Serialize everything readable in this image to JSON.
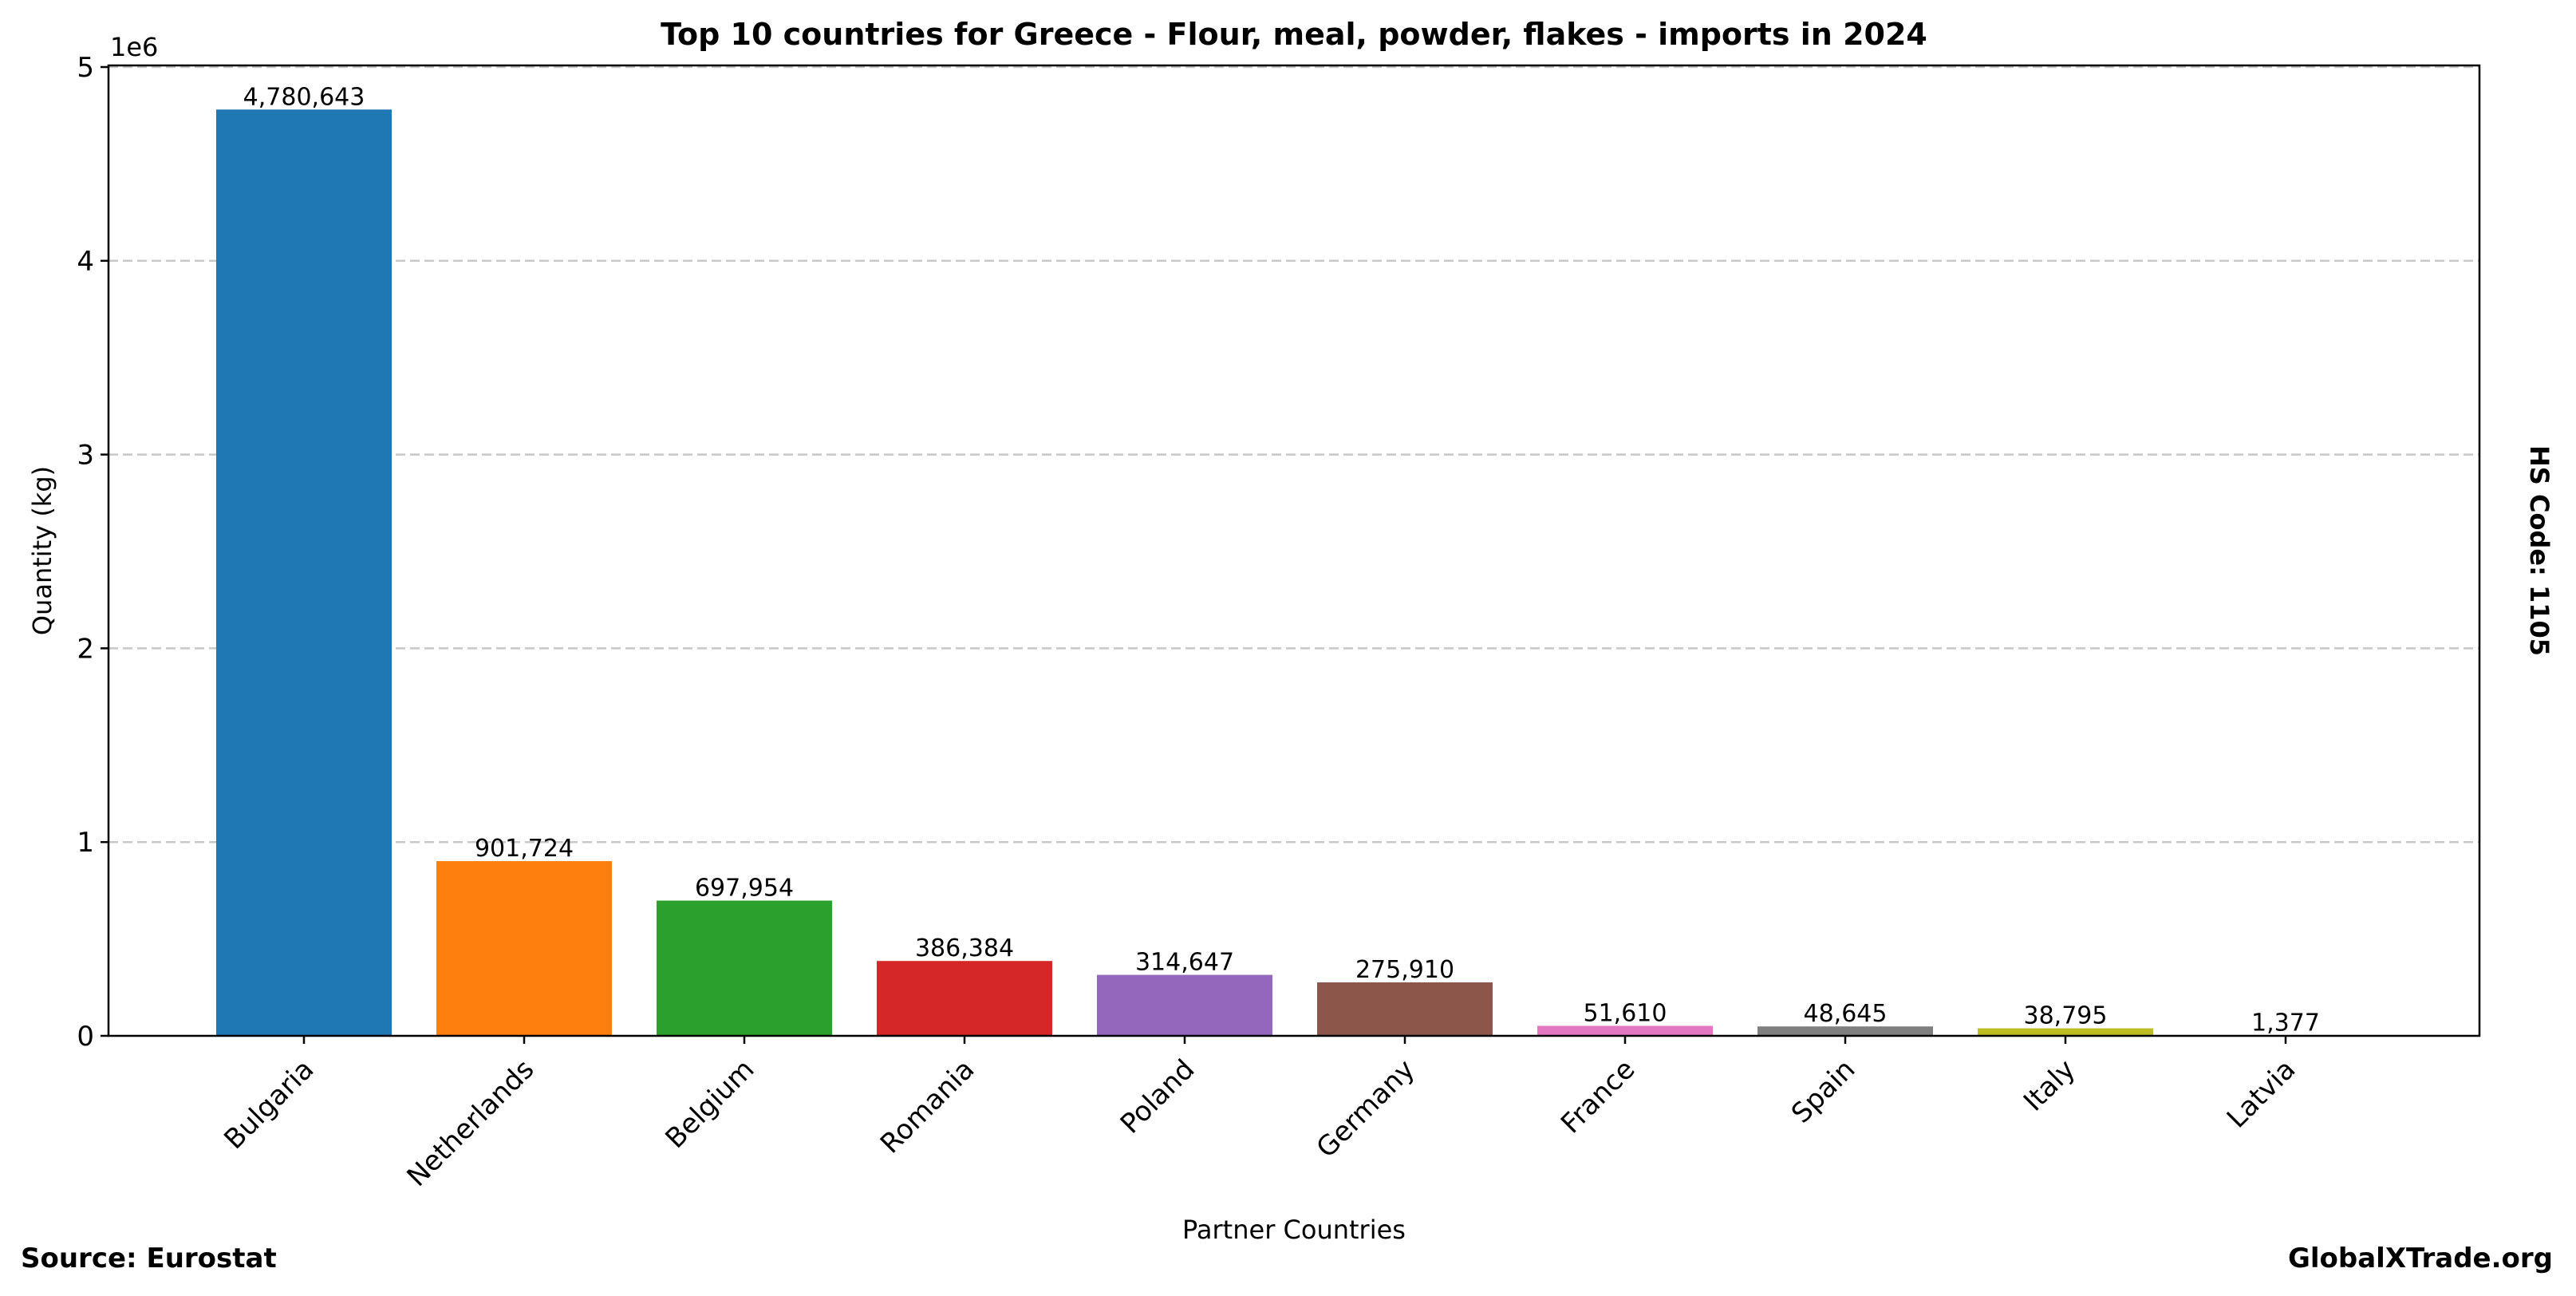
{
  "chart_data": {
    "type": "bar",
    "title": "Top 10 countries for Greece - Flour, meal, powder, flakes - imports in 2024",
    "xlabel": "Partner Countries",
    "ylabel": "Quantity (kg)",
    "y_offset_label": "1e6",
    "ylim": [
      0,
      5000000
    ],
    "yticks": [
      0,
      1,
      2,
      3,
      4,
      5
    ],
    "grid": true,
    "categories": [
      "Bulgaria",
      "Netherlands",
      "Belgium",
      "Romania",
      "Poland",
      "Germany",
      "France",
      "Spain",
      "Italy",
      "Latvia"
    ],
    "values": [
      4780643,
      901724,
      697954,
      386384,
      314647,
      275910,
      51610,
      48645,
      38795,
      1377
    ],
    "value_labels": [
      "4,780,643",
      "901,724",
      "697,954",
      "386,384",
      "314,647",
      "275,910",
      "51,610",
      "48,645",
      "38,795",
      "1,377"
    ],
    "colors": [
      "#1f77b4",
      "#ff7f0e",
      "#2ca02c",
      "#d62728",
      "#9467bd",
      "#8c564b",
      "#e377c2",
      "#7f7f7f",
      "#bcbd22",
      "#17becf"
    ]
  },
  "annotations": {
    "source": "Source: Eurostat",
    "brand": "GlobalXTrade.org",
    "hs_code": "HS Code: 1105"
  }
}
